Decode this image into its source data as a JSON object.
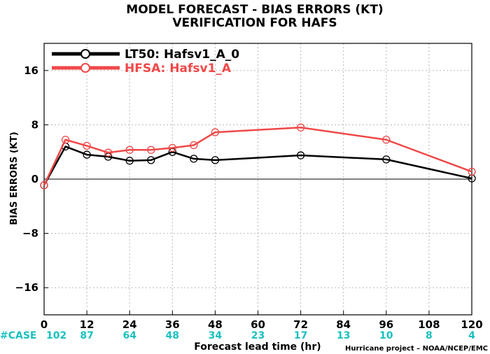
{
  "chart_data": {
    "type": "line",
    "title": "MODEL FORECAST - BIAS ERRORS (KT)",
    "subtitle": "VERIFICATION FOR HAFS",
    "xlabel": "Forecast lead time (hr)",
    "ylabel": "BIAS ERRORS (KT)",
    "xlim": [
      0,
      120
    ],
    "ylim": [
      -20,
      20
    ],
    "xticks": [
      0,
      12,
      24,
      36,
      48,
      60,
      72,
      84,
      96,
      108,
      120
    ],
    "yticks": [
      16,
      8,
      0,
      -8,
      -16
    ],
    "ytick_labels": [
      "16",
      "8",
      "0",
      "−8",
      "−16"
    ],
    "grid": true,
    "legend_position": "top-left",
    "case_label": "#CASE",
    "case_counts": [
      "102",
      "87",
      "64",
      "48",
      "34",
      "23",
      "17",
      "13",
      "10",
      "8",
      "4"
    ],
    "case_color": "#19c0c0",
    "credit": "Hurricane project – NOAA/NCEP/EMC",
    "series": [
      {
        "name": "LT50: Hafsv1_A_0",
        "color": "#000000",
        "x": [
          0,
          6,
          12,
          18,
          24,
          30,
          36,
          42,
          48,
          72,
          96,
          120
        ],
        "values": [
          -0.9,
          4.8,
          3.6,
          3.3,
          2.7,
          2.8,
          4.0,
          3.0,
          2.8,
          3.5,
          2.9,
          0.1
        ]
      },
      {
        "name": "HFSA: Hafsv1_A",
        "color": "#f04848",
        "x": [
          0,
          6,
          12,
          18,
          24,
          30,
          36,
          42,
          48,
          72,
          96,
          120
        ],
        "values": [
          -0.9,
          5.8,
          4.9,
          3.9,
          4.3,
          4.3,
          4.6,
          5.0,
          6.9,
          7.6,
          5.8,
          1.1
        ]
      }
    ]
  }
}
